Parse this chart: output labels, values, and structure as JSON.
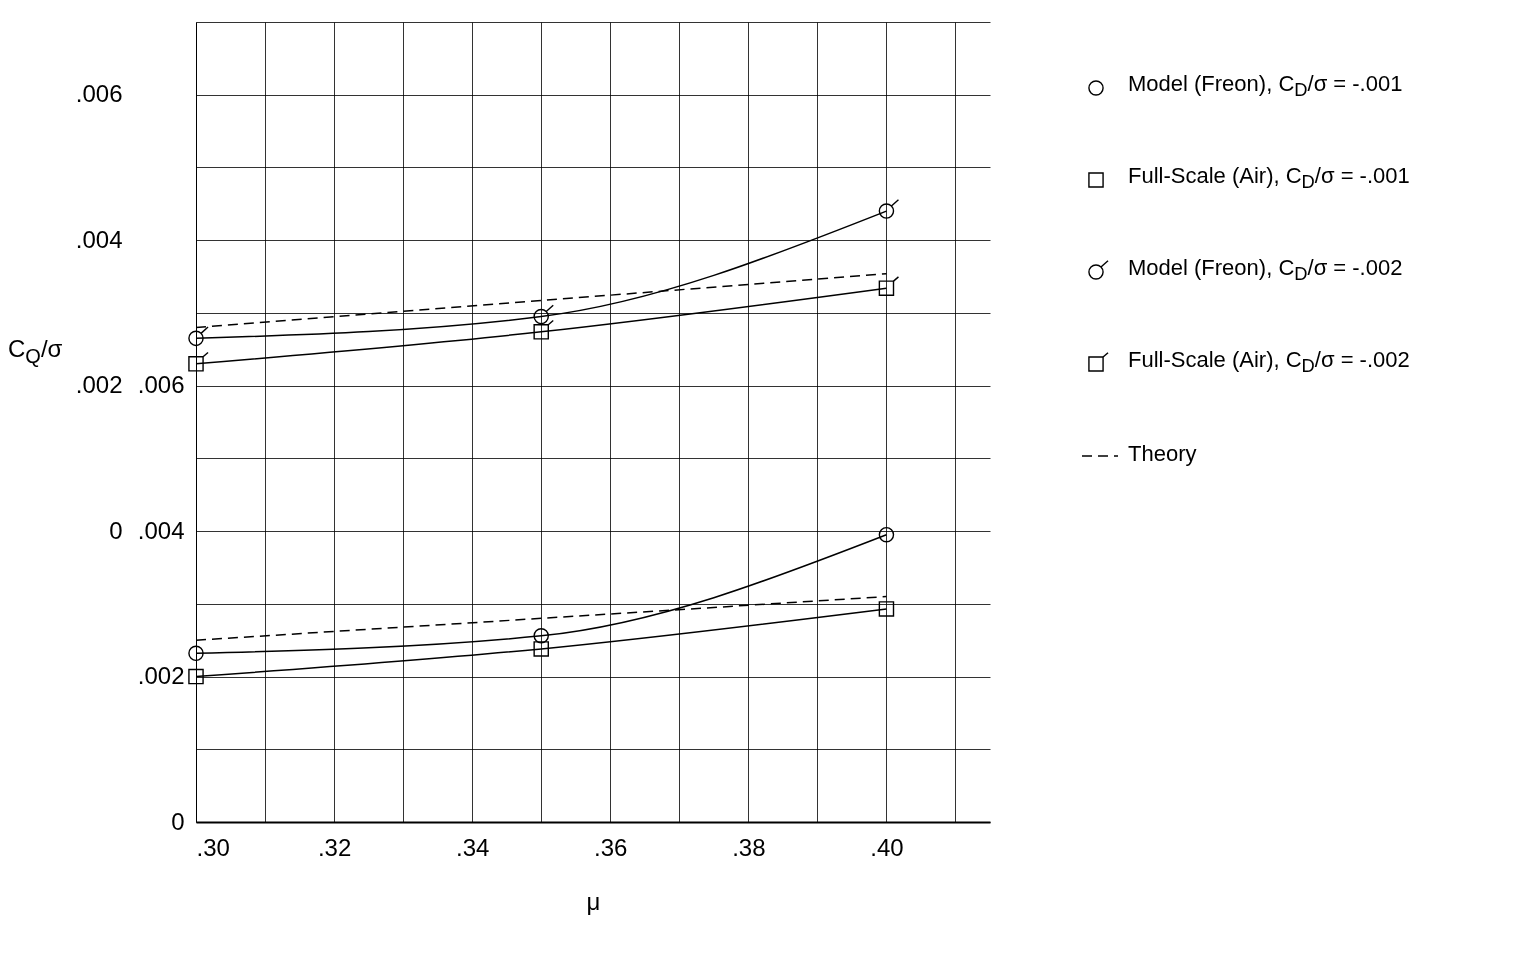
{
  "chart_data": {
    "type": "line",
    "xlabel": "μ",
    "ylabel": "C$_{Q}$/σ",
    "xlim": [
      0.3,
      0.415
    ],
    "xticks": [
      {
        "value": 0.3,
        "label": ".30"
      },
      {
        "value": 0.31,
        "label": null
      },
      {
        "value": 0.32,
        "label": ".32"
      },
      {
        "value": 0.33,
        "label": null
      },
      {
        "value": 0.34,
        "label": ".34"
      },
      {
        "value": 0.35,
        "label": null
      },
      {
        "value": 0.36,
        "label": ".36"
      },
      {
        "value": 0.37,
        "label": null
      },
      {
        "value": 0.38,
        "label": ".38"
      },
      {
        "value": 0.39,
        "label": null
      },
      {
        "value": 0.4,
        "label": ".40"
      },
      {
        "value": 0.41,
        "label": null
      }
    ],
    "ylim": [
      -0.004,
      0.007
    ],
    "yticks": [
      {
        "value": -0.004,
        "label": null
      },
      {
        "value": -0.003,
        "label": null
      },
      {
        "value": -0.002,
        "label": null
      },
      {
        "value": -0.001,
        "label": null
      },
      0,
      {
        "value": 0.001,
        "label": null
      },
      {
        "value": 0.002,
        "label": ".002"
      },
      {
        "value": 0.003,
        "label": null
      },
      {
        "value": 0.004,
        "label": ".004"
      },
      {
        "value": 0.005,
        "label": null
      },
      {
        "value": 0.006,
        "label": ".006"
      },
      {
        "value": 0.007,
        "label": null
      }
    ],
    "y2lim": [
      0,
      0.011
    ],
    "y2ticks": [
      0,
      {
        "value": 0.002,
        "label": ".002"
      },
      {
        "value": 0.004,
        "label": ".004"
      },
      {
        "value": 0.006,
        "label": ".006"
      }
    ],
    "grid": true,
    "legend": "right",
    "series": [
      {
        "name": "Model (Freon), C$_{D}$/σ = -.001",
        "color": "#000000",
        "x": [
          0.3,
          0.35,
          0.4
        ],
        "values": [
          0.00232,
          0.00256,
          0.00395
        ],
        "marker": "circle",
        "line_style": "solid",
        "axis": "y2"
      },
      {
        "name": "Full-Scale (Air), C$_{D}$/σ = -.001",
        "color": "#000000",
        "x": [
          0.3,
          0.35,
          0.4
        ],
        "values": [
          0.002,
          0.00238,
          0.00293
        ],
        "marker": "square",
        "line_style": "solid",
        "axis": "y2"
      },
      {
        "name": "Model (Freon), C$_{D}$/σ = -.002",
        "color": "#000000",
        "x": [
          0.3,
          0.35,
          0.4
        ],
        "values": [
          0.00265,
          0.00295,
          0.0044
        ],
        "marker": "circle",
        "line_style": "solid"
      },
      {
        "name": "Full-Scale (Air), C$_{D}$/σ = -.002",
        "color": "#000000",
        "x": [
          0.3,
          0.35,
          0.4
        ],
        "values": [
          0.0023,
          0.00274,
          0.00334
        ],
        "marker": "square",
        "line_style": "solid"
      },
      {
        "name": "Theory",
        "color": "#000000",
        "x": [
          0.3,
          0.4
        ],
        "values": [
          0.0025,
          0.0031
        ],
        "marker": "none",
        "line_style": "dashed",
        "axis": "y2"
      },
      {
        "color": "#000000",
        "x": [
          0.3,
          0.4
        ],
        "values": [
          0.0028,
          0.00354
        ],
        "marker": "none",
        "line_style": "dashed"
      }
    ]
  }
}
